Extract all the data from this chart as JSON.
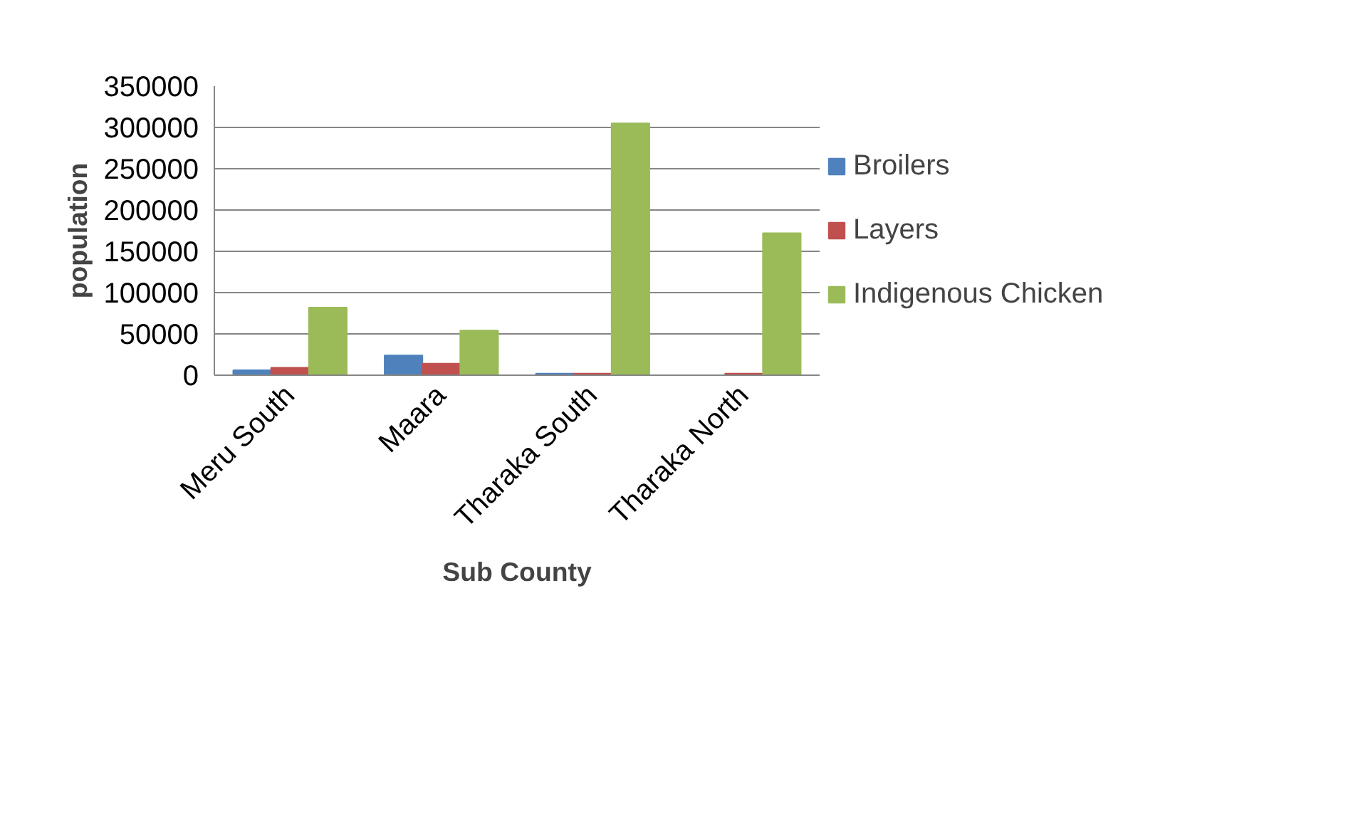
{
  "chart_data": {
    "type": "bar",
    "xlabel": "Sub County",
    "ylabel": "population",
    "categories": [
      "Meru South",
      "Maara",
      "Tharaka South",
      "Tharaka North"
    ],
    "series": [
      {
        "name": "Broilers",
        "color": "#4f81bd",
        "values": [
          6000,
          24000,
          2000,
          null
        ]
      },
      {
        "name": "Layers",
        "color": "#c0504d",
        "values": [
          9000,
          14000,
          2000,
          2000
        ]
      },
      {
        "name": "Indigenous Chicken",
        "color": "#9bbb59",
        "values": [
          82000,
          54000,
          305000,
          172000
        ]
      }
    ],
    "ylim": [
      0,
      350000
    ],
    "yticks": [
      0,
      50000,
      100000,
      150000,
      200000,
      250000,
      300000,
      350000
    ],
    "grid": "y",
    "legend": "right"
  }
}
